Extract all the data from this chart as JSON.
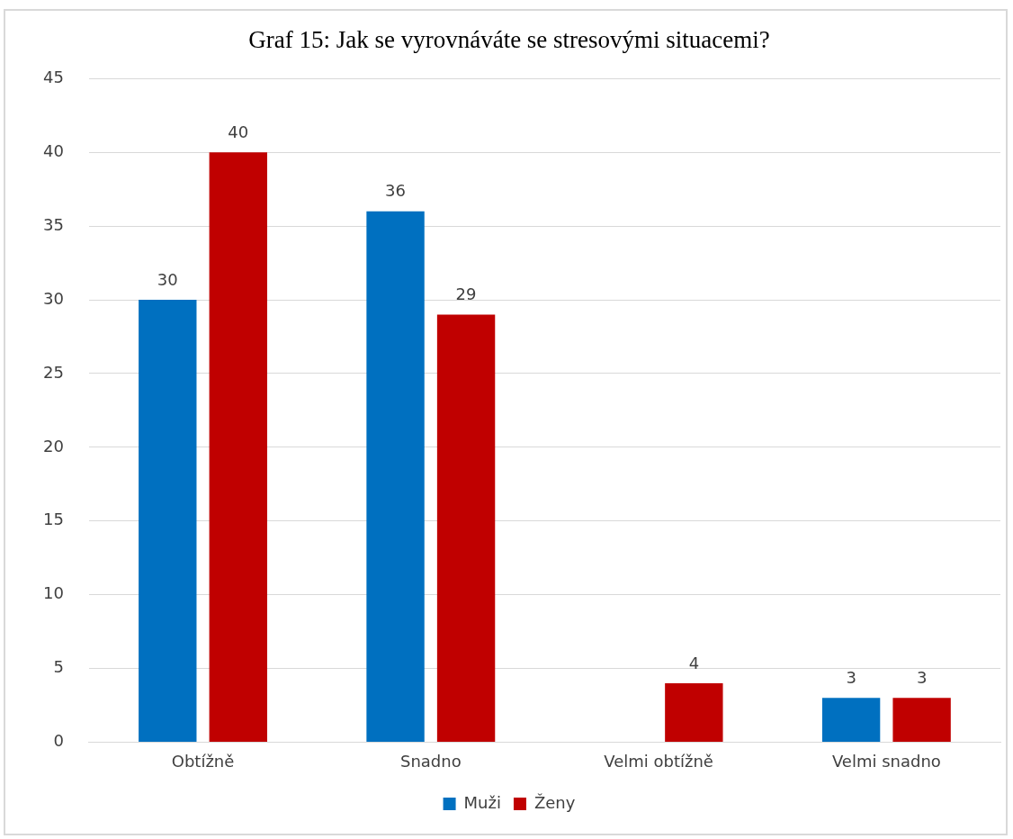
{
  "chart_data": {
    "type": "bar",
    "title": "Graf 15: Jak se vyrovnáváte se stresovými situacemi?",
    "categories": [
      "Obtížně",
      "Snadno",
      "Velmi obtížně",
      "Velmi snadno"
    ],
    "series": [
      {
        "name": "Muži",
        "color": "#0070c0",
        "values": [
          30,
          36,
          null,
          3
        ]
      },
      {
        "name": "Ženy",
        "color": "#c00000",
        "values": [
          40,
          29,
          4,
          3
        ]
      }
    ],
    "ylim": [
      0,
      45
    ],
    "yticks": [
      0,
      5,
      10,
      15,
      20,
      25,
      30,
      35,
      40,
      45
    ],
    "grid": "y",
    "legend": "bottom",
    "data_labels": true
  }
}
